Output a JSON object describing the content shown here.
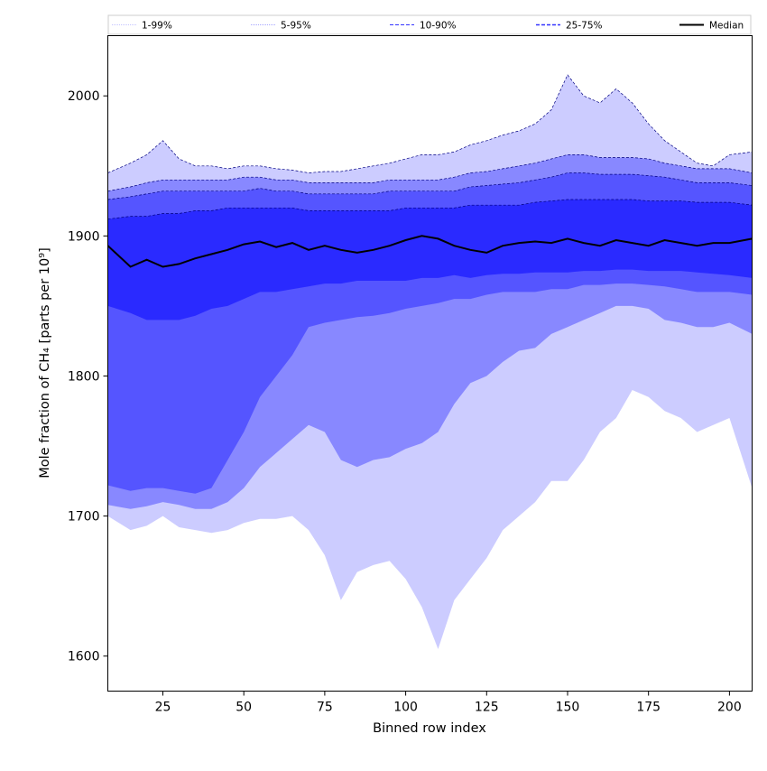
{
  "chart_data": {
    "type": "area",
    "title": "",
    "xlabel": "Binned row index",
    "ylabel": "Mole fraction of CH₄ [parts per 10⁹]",
    "xlim": [
      8,
      207
    ],
    "ylim": [
      1575,
      2043
    ],
    "xticks": [
      25,
      50,
      75,
      100,
      125,
      150,
      175,
      200
    ],
    "yticks": [
      1600,
      1700,
      1800,
      1900,
      2000
    ],
    "grid": false,
    "legend_position": "top",
    "legend": [
      {
        "label": "1-99%",
        "style": "band",
        "color": "#ccccff"
      },
      {
        "label": "5-95%",
        "style": "band",
        "color": "#8888ff"
      },
      {
        "label": "10-90%",
        "style": "band",
        "color": "#5555ff"
      },
      {
        "label": "25-75%",
        "style": "band",
        "color": "#2a2aff"
      },
      {
        "label": "Median",
        "style": "line",
        "color": "#000000"
      }
    ],
    "colors": {
      "band_1_99": "#ccccff",
      "band_5_95": "#8888ff",
      "band_10_90": "#5555ff",
      "band_25_75": "#2a2aff",
      "median": "#000000"
    },
    "x": [
      8,
      15,
      20,
      25,
      30,
      35,
      40,
      45,
      50,
      55,
      60,
      65,
      70,
      75,
      80,
      85,
      90,
      95,
      100,
      105,
      110,
      115,
      120,
      125,
      130,
      135,
      140,
      145,
      150,
      155,
      160,
      165,
      170,
      175,
      180,
      185,
      190,
      195,
      200,
      207
    ],
    "series": [
      {
        "name": "p01",
        "values": [
          1700,
          1690,
          1693,
          1700,
          1692,
          1690,
          1688,
          1690,
          1695,
          1698,
          1698,
          1700,
          1690,
          1672,
          1640,
          1660,
          1665,
          1668,
          1655,
          1635,
          1605,
          1640,
          1655,
          1670,
          1690,
          1700,
          1710,
          1725,
          1725,
          1740,
          1760,
          1770,
          1790,
          1785,
          1775,
          1770,
          1760,
          1765,
          1770,
          1720
        ]
      },
      {
        "name": "p05",
        "values": [
          1708,
          1705,
          1707,
          1710,
          1708,
          1705,
          1705,
          1710,
          1720,
          1735,
          1745,
          1755,
          1765,
          1760,
          1740,
          1735,
          1740,
          1742,
          1748,
          1752,
          1760,
          1780,
          1795,
          1800,
          1810,
          1818,
          1820,
          1830,
          1835,
          1840,
          1845,
          1850,
          1850,
          1848,
          1840,
          1838,
          1835,
          1835,
          1838,
          1830
        ]
      },
      {
        "name": "p10",
        "values": [
          1722,
          1718,
          1720,
          1720,
          1718,
          1716,
          1720,
          1740,
          1760,
          1785,
          1800,
          1815,
          1835,
          1838,
          1840,
          1842,
          1843,
          1845,
          1848,
          1850,
          1852,
          1855,
          1855,
          1858,
          1860,
          1860,
          1860,
          1862,
          1862,
          1865,
          1865,
          1866,
          1866,
          1865,
          1864,
          1862,
          1860,
          1860,
          1860,
          1858
        ]
      },
      {
        "name": "p25",
        "values": [
          1850,
          1845,
          1840,
          1840,
          1840,
          1843,
          1848,
          1850,
          1855,
          1860,
          1860,
          1862,
          1864,
          1866,
          1866,
          1868,
          1868,
          1868,
          1868,
          1870,
          1870,
          1872,
          1870,
          1872,
          1873,
          1873,
          1874,
          1874,
          1874,
          1875,
          1875,
          1876,
          1876,
          1875,
          1875,
          1875,
          1874,
          1873,
          1872,
          1870
        ]
      },
      {
        "name": "median",
        "values": [
          1893,
          1878,
          1883,
          1878,
          1880,
          1884,
          1887,
          1890,
          1894,
          1896,
          1892,
          1895,
          1890,
          1893,
          1890,
          1888,
          1890,
          1893,
          1897,
          1900,
          1898,
          1893,
          1890,
          1888,
          1893,
          1895,
          1896,
          1895,
          1898,
          1895,
          1893,
          1897,
          1895,
          1893,
          1897,
          1895,
          1893,
          1895,
          1895,
          1898
        ]
      },
      {
        "name": "p75",
        "values": [
          1912,
          1914,
          1914,
          1916,
          1916,
          1918,
          1918,
          1920,
          1920,
          1920,
          1920,
          1920,
          1918,
          1918,
          1918,
          1918,
          1918,
          1918,
          1920,
          1920,
          1920,
          1920,
          1922,
          1922,
          1922,
          1922,
          1924,
          1925,
          1926,
          1926,
          1926,
          1926,
          1926,
          1925,
          1925,
          1925,
          1924,
          1924,
          1924,
          1922
        ]
      },
      {
        "name": "p90",
        "values": [
          1926,
          1928,
          1930,
          1932,
          1932,
          1932,
          1932,
          1932,
          1932,
          1934,
          1932,
          1932,
          1930,
          1930,
          1930,
          1930,
          1930,
          1932,
          1932,
          1932,
          1932,
          1932,
          1935,
          1936,
          1937,
          1938,
          1940,
          1942,
          1945,
          1945,
          1944,
          1944,
          1944,
          1943,
          1942,
          1940,
          1938,
          1938,
          1938,
          1936
        ]
      },
      {
        "name": "p95",
        "values": [
          1932,
          1935,
          1938,
          1940,
          1940,
          1940,
          1940,
          1940,
          1942,
          1942,
          1940,
          1940,
          1938,
          1938,
          1938,
          1938,
          1938,
          1940,
          1940,
          1940,
          1940,
          1942,
          1945,
          1946,
          1948,
          1950,
          1952,
          1955,
          1958,
          1958,
          1956,
          1956,
          1956,
          1955,
          1952,
          1950,
          1948,
          1948,
          1948,
          1945
        ]
      },
      {
        "name": "p99",
        "values": [
          1945,
          1952,
          1958,
          1968,
          1955,
          1950,
          1950,
          1948,
          1950,
          1950,
          1948,
          1947,
          1945,
          1946,
          1946,
          1948,
          1950,
          1952,
          1955,
          1958,
          1958,
          1960,
          1965,
          1968,
          1972,
          1975,
          1980,
          1990,
          2015,
          2000,
          1995,
          2005,
          1995,
          1980,
          1968,
          1960,
          1952,
          1950,
          1958,
          1960
        ]
      }
    ]
  }
}
